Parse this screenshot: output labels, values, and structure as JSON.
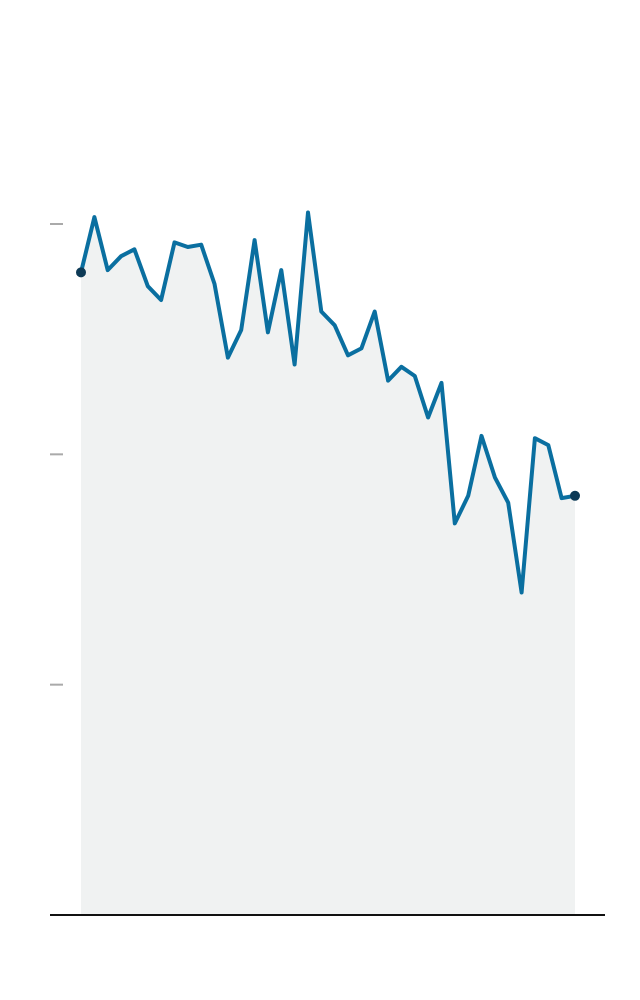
{
  "chart_data": {
    "type": "area",
    "title": "",
    "xlabel": "",
    "ylabel": "",
    "ylim": [
      0,
      3
    ],
    "y_ticks": [
      1,
      2,
      3
    ],
    "grid": false,
    "legend": "none",
    "x": [
      1,
      2,
      3,
      4,
      5,
      6,
      7,
      8,
      9,
      10,
      11,
      12,
      13,
      14,
      15,
      16,
      17,
      18,
      19,
      20,
      21,
      22,
      23,
      24,
      25,
      26,
      27,
      28,
      29,
      30,
      31,
      32,
      33,
      34,
      35,
      36,
      37,
      38
    ],
    "series": [
      {
        "name": "",
        "values": [
          2.79,
          3.03,
          2.8,
          2.86,
          2.89,
          2.73,
          2.67,
          2.92,
          2.9,
          2.91,
          2.74,
          2.42,
          2.54,
          2.93,
          2.53,
          2.8,
          2.39,
          3.05,
          2.62,
          2.56,
          2.43,
          2.46,
          2.62,
          2.32,
          2.38,
          2.34,
          2.16,
          2.31,
          1.7,
          1.82,
          2.08,
          1.9,
          1.79,
          1.4,
          2.07,
          2.04,
          1.81,
          1.82
        ],
        "color": "#0a6fa0",
        "fill": "#f0f2f2",
        "endpoint_color": "#0d3a56"
      }
    ]
  }
}
